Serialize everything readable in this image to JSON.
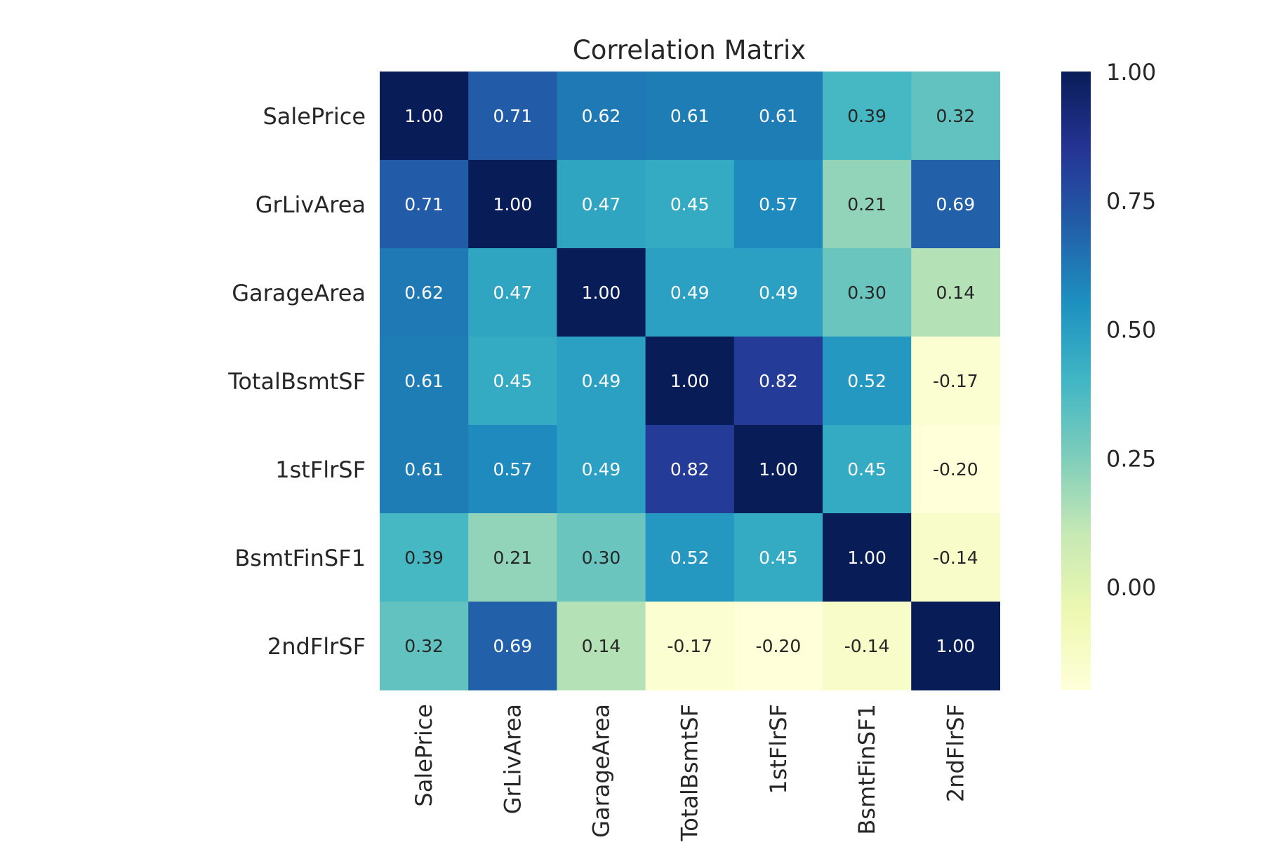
{
  "chart_data": {
    "type": "heatmap",
    "title": "Correlation Matrix",
    "rows": [
      "SalePrice",
      "GrLivArea",
      "GarageArea",
      "TotalBsmtSF",
      "1stFlrSF",
      "BsmtFinSF1",
      "2ndFlrSF"
    ],
    "columns": [
      "SalePrice",
      "GrLivArea",
      "GarageArea",
      "TotalBsmtSF",
      "1stFlrSF",
      "BsmtFinSF1",
      "2ndFlrSF"
    ],
    "values": [
      [
        1.0,
        0.71,
        0.62,
        0.61,
        0.61,
        0.39,
        0.32
      ],
      [
        0.71,
        1.0,
        0.47,
        0.45,
        0.57,
        0.21,
        0.69
      ],
      [
        0.62,
        0.47,
        1.0,
        0.49,
        0.49,
        0.3,
        0.14
      ],
      [
        0.61,
        0.45,
        0.49,
        1.0,
        0.82,
        0.52,
        -0.17
      ],
      [
        0.61,
        0.57,
        0.49,
        0.82,
        1.0,
        0.45,
        -0.2
      ],
      [
        0.39,
        0.21,
        0.3,
        0.52,
        0.45,
        1.0,
        -0.14
      ],
      [
        0.32,
        0.69,
        0.14,
        -0.17,
        -0.2,
        -0.14,
        1.0
      ]
    ],
    "annotation_format": "0.00",
    "colormap": "YlGnBu",
    "colorbar": {
      "range": [
        -0.2,
        1.0
      ],
      "ticks": [
        0.0,
        0.25,
        0.5,
        0.75,
        1.0
      ],
      "tick_labels": [
        "0.00",
        "0.25",
        "0.50",
        "0.75",
        "1.00"
      ]
    },
    "grid": false
  },
  "colors": {
    "text_dark": "#262626",
    "cell_text_light": "#ffffff",
    "cell_text_dark": "#262626"
  }
}
